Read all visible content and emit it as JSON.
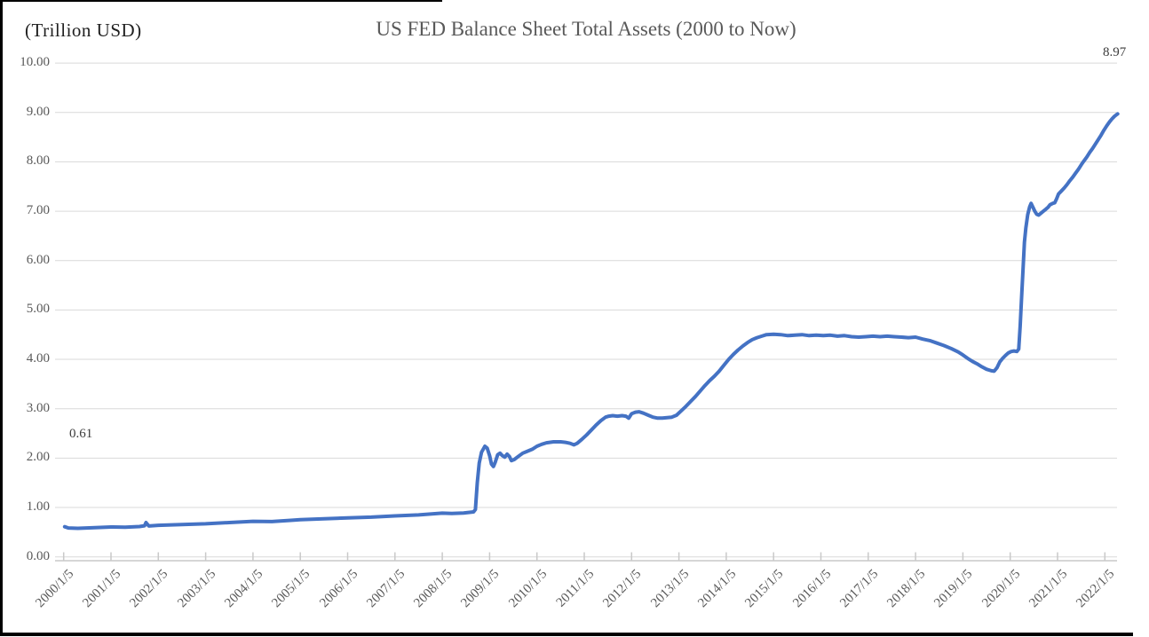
{
  "header": {
    "units_label": "(Trillion USD)",
    "title": "US FED Balance Sheet Total Assets (2000 to Now)"
  },
  "chart_data": {
    "type": "line",
    "title": "US FED Balance Sheet Total Assets (2000 to Now)",
    "units": "(Trillion USD)",
    "xlabel": "",
    "ylabel": "(Trillion USD)",
    "ylim": [
      0,
      10
    ],
    "xlim": [
      2000,
      2022.4
    ],
    "grid": true,
    "legend_position": "none",
    "y_ticks": [
      {
        "value": 0,
        "label": "0.00"
      },
      {
        "value": 1,
        "label": "1.00"
      },
      {
        "value": 2,
        "label": "2.00"
      },
      {
        "value": 3,
        "label": "3.00"
      },
      {
        "value": 4,
        "label": "4.00"
      },
      {
        "value": 5,
        "label": "5.00"
      },
      {
        "value": 6,
        "label": "6.00"
      },
      {
        "value": 7,
        "label": "7.00"
      },
      {
        "value": 8,
        "label": "8.00"
      },
      {
        "value": 9,
        "label": "9.00"
      },
      {
        "value": 10,
        "label": "10.00"
      }
    ],
    "x_ticks": [
      {
        "year": 2000,
        "label": "2000/1/5"
      },
      {
        "year": 2001,
        "label": "2001/1/5"
      },
      {
        "year": 2002,
        "label": "2002/1/5"
      },
      {
        "year": 2003,
        "label": "2003/1/5"
      },
      {
        "year": 2004,
        "label": "2004/1/5"
      },
      {
        "year": 2005,
        "label": "2005/1/5"
      },
      {
        "year": 2006,
        "label": "2006/1/5"
      },
      {
        "year": 2007,
        "label": "2007/1/5"
      },
      {
        "year": 2008,
        "label": "2008/1/5"
      },
      {
        "year": 2009,
        "label": "2009/1/5"
      },
      {
        "year": 2010,
        "label": "2010/1/5"
      },
      {
        "year": 2011,
        "label": "2011/1/5"
      },
      {
        "year": 2012,
        "label": "2012/1/5"
      },
      {
        "year": 2013,
        "label": "2013/1/5"
      },
      {
        "year": 2014,
        "label": "2014/1/5"
      },
      {
        "year": 2015,
        "label": "2015/1/5"
      },
      {
        "year": 2016,
        "label": "2016/1/5"
      },
      {
        "year": 2017,
        "label": "2017/1/5"
      },
      {
        "year": 2018,
        "label": "2018/1/5"
      },
      {
        "year": 2019,
        "label": "2019/1/5"
      },
      {
        "year": 2020,
        "label": "2020/1/5"
      },
      {
        "year": 2021,
        "label": "2021/1/5"
      },
      {
        "year": 2022,
        "label": "2022/1/5"
      }
    ],
    "annotations": [
      {
        "text": "0.61",
        "x": 2000.02,
        "y": 0.61
      },
      {
        "text": "8.97",
        "x": 2022.27,
        "y": 8.97
      }
    ],
    "colors": {
      "line": "#4472C4",
      "grid": "#D9D9D9",
      "axis": "#C9C9C9",
      "tick_text": "#595959",
      "title_text": "#595959",
      "annotation_text": "#3b3b3b",
      "leader_line": "#A6A6A6"
    },
    "series": [
      {
        "name": "US FED Balance Sheet Total Assets",
        "points": [
          [
            2000.02,
            0.61
          ],
          [
            2000.1,
            0.585
          ],
          [
            2000.3,
            0.578
          ],
          [
            2000.6,
            0.59
          ],
          [
            2001.0,
            0.605
          ],
          [
            2001.3,
            0.6
          ],
          [
            2001.6,
            0.615
          ],
          [
            2001.71,
            0.63
          ],
          [
            2001.74,
            0.695
          ],
          [
            2001.8,
            0.625
          ],
          [
            2002.0,
            0.64
          ],
          [
            2002.5,
            0.655
          ],
          [
            2003.0,
            0.67
          ],
          [
            2003.5,
            0.695
          ],
          [
            2004.0,
            0.72
          ],
          [
            2004.4,
            0.715
          ],
          [
            2004.8,
            0.74
          ],
          [
            2005.0,
            0.755
          ],
          [
            2005.5,
            0.77
          ],
          [
            2006.0,
            0.79
          ],
          [
            2006.5,
            0.805
          ],
          [
            2007.0,
            0.83
          ],
          [
            2007.5,
            0.85
          ],
          [
            2008.0,
            0.885
          ],
          [
            2008.2,
            0.88
          ],
          [
            2008.45,
            0.89
          ],
          [
            2008.66,
            0.91
          ],
          [
            2008.7,
            0.96
          ],
          [
            2008.74,
            1.5
          ],
          [
            2008.78,
            1.9
          ],
          [
            2008.83,
            2.12
          ],
          [
            2008.9,
            2.24
          ],
          [
            2008.95,
            2.2
          ],
          [
            2009.0,
            2.05
          ],
          [
            2009.04,
            1.88
          ],
          [
            2009.08,
            1.83
          ],
          [
            2009.12,
            1.92
          ],
          [
            2009.17,
            2.07
          ],
          [
            2009.22,
            2.1
          ],
          [
            2009.27,
            2.05
          ],
          [
            2009.32,
            2.02
          ],
          [
            2009.37,
            2.08
          ],
          [
            2009.42,
            2.03
          ],
          [
            2009.46,
            1.95
          ],
          [
            2009.52,
            1.97
          ],
          [
            2009.6,
            2.03
          ],
          [
            2009.7,
            2.1
          ],
          [
            2009.8,
            2.14
          ],
          [
            2009.9,
            2.18
          ],
          [
            2010.0,
            2.24
          ],
          [
            2010.1,
            2.28
          ],
          [
            2010.2,
            2.31
          ],
          [
            2010.35,
            2.33
          ],
          [
            2010.5,
            2.33
          ],
          [
            2010.6,
            2.32
          ],
          [
            2010.7,
            2.3
          ],
          [
            2010.78,
            2.27
          ],
          [
            2010.85,
            2.3
          ],
          [
            2010.95,
            2.38
          ],
          [
            2011.05,
            2.47
          ],
          [
            2011.15,
            2.57
          ],
          [
            2011.25,
            2.67
          ],
          [
            2011.35,
            2.76
          ],
          [
            2011.45,
            2.83
          ],
          [
            2011.52,
            2.85
          ],
          [
            2011.6,
            2.86
          ],
          [
            2011.7,
            2.85
          ],
          [
            2011.8,
            2.86
          ],
          [
            2011.88,
            2.85
          ],
          [
            2011.94,
            2.81
          ],
          [
            2012.0,
            2.9
          ],
          [
            2012.08,
            2.93
          ],
          [
            2012.16,
            2.94
          ],
          [
            2012.25,
            2.91
          ],
          [
            2012.35,
            2.87
          ],
          [
            2012.45,
            2.83
          ],
          [
            2012.55,
            2.81
          ],
          [
            2012.65,
            2.81
          ],
          [
            2012.75,
            2.82
          ],
          [
            2012.85,
            2.83
          ],
          [
            2012.95,
            2.87
          ],
          [
            2013.05,
            2.96
          ],
          [
            2013.15,
            3.05
          ],
          [
            2013.25,
            3.15
          ],
          [
            2013.35,
            3.25
          ],
          [
            2013.45,
            3.36
          ],
          [
            2013.55,
            3.47
          ],
          [
            2013.65,
            3.57
          ],
          [
            2013.75,
            3.66
          ],
          [
            2013.85,
            3.76
          ],
          [
            2013.95,
            3.88
          ],
          [
            2014.05,
            4.0
          ],
          [
            2014.15,
            4.1
          ],
          [
            2014.25,
            4.19
          ],
          [
            2014.35,
            4.27
          ],
          [
            2014.45,
            4.34
          ],
          [
            2014.55,
            4.4
          ],
          [
            2014.65,
            4.44
          ],
          [
            2014.75,
            4.47
          ],
          [
            2014.85,
            4.5
          ],
          [
            2015.0,
            4.51
          ],
          [
            2015.15,
            4.5
          ],
          [
            2015.3,
            4.48
          ],
          [
            2015.45,
            4.49
          ],
          [
            2015.6,
            4.5
          ],
          [
            2015.75,
            4.48
          ],
          [
            2015.9,
            4.49
          ],
          [
            2016.05,
            4.48
          ],
          [
            2016.2,
            4.49
          ],
          [
            2016.35,
            4.47
          ],
          [
            2016.5,
            4.48
          ],
          [
            2016.65,
            4.46
          ],
          [
            2016.8,
            4.45
          ],
          [
            2016.95,
            4.46
          ],
          [
            2017.1,
            4.47
          ],
          [
            2017.25,
            4.46
          ],
          [
            2017.4,
            4.47
          ],
          [
            2017.55,
            4.46
          ],
          [
            2017.7,
            4.45
          ],
          [
            2017.85,
            4.44
          ],
          [
            2018.0,
            4.45
          ],
          [
            2018.15,
            4.41
          ],
          [
            2018.3,
            4.38
          ],
          [
            2018.45,
            4.33
          ],
          [
            2018.6,
            4.28
          ],
          [
            2018.75,
            4.22
          ],
          [
            2018.9,
            4.15
          ],
          [
            2019.0,
            4.09
          ],
          [
            2019.1,
            4.02
          ],
          [
            2019.2,
            3.96
          ],
          [
            2019.3,
            3.91
          ],
          [
            2019.4,
            3.85
          ],
          [
            2019.5,
            3.8
          ],
          [
            2019.6,
            3.77
          ],
          [
            2019.66,
            3.76
          ],
          [
            2019.72,
            3.83
          ],
          [
            2019.78,
            3.95
          ],
          [
            2019.84,
            4.02
          ],
          [
            2019.9,
            4.08
          ],
          [
            2019.96,
            4.13
          ],
          [
            2020.02,
            4.16
          ],
          [
            2020.08,
            4.17
          ],
          [
            2020.14,
            4.16
          ],
          [
            2020.18,
            4.21
          ],
          [
            2020.21,
            4.67
          ],
          [
            2020.24,
            5.25
          ],
          [
            2020.27,
            5.81
          ],
          [
            2020.3,
            6.37
          ],
          [
            2020.33,
            6.66
          ],
          [
            2020.37,
            6.93
          ],
          [
            2020.41,
            7.09
          ],
          [
            2020.44,
            7.16
          ],
          [
            2020.48,
            7.08
          ],
          [
            2020.52,
            7.0
          ],
          [
            2020.56,
            6.94
          ],
          [
            2020.6,
            6.92
          ],
          [
            2020.65,
            6.96
          ],
          [
            2020.7,
            7.0
          ],
          [
            2020.75,
            7.04
          ],
          [
            2020.8,
            7.08
          ],
          [
            2020.84,
            7.13
          ],
          [
            2020.9,
            7.16
          ],
          [
            2020.94,
            7.17
          ],
          [
            2020.98,
            7.25
          ],
          [
            2021.02,
            7.35
          ],
          [
            2021.08,
            7.41
          ],
          [
            2021.14,
            7.47
          ],
          [
            2021.2,
            7.54
          ],
          [
            2021.26,
            7.62
          ],
          [
            2021.32,
            7.69
          ],
          [
            2021.38,
            7.77
          ],
          [
            2021.44,
            7.85
          ],
          [
            2021.5,
            7.94
          ],
          [
            2021.56,
            8.02
          ],
          [
            2021.62,
            8.1
          ],
          [
            2021.68,
            8.19
          ],
          [
            2021.74,
            8.27
          ],
          [
            2021.8,
            8.36
          ],
          [
            2021.86,
            8.45
          ],
          [
            2021.92,
            8.54
          ],
          [
            2021.98,
            8.64
          ],
          [
            2022.04,
            8.73
          ],
          [
            2022.1,
            8.81
          ],
          [
            2022.15,
            8.87
          ],
          [
            2022.2,
            8.92
          ],
          [
            2022.24,
            8.95
          ],
          [
            2022.27,
            8.97
          ]
        ]
      }
    ]
  }
}
